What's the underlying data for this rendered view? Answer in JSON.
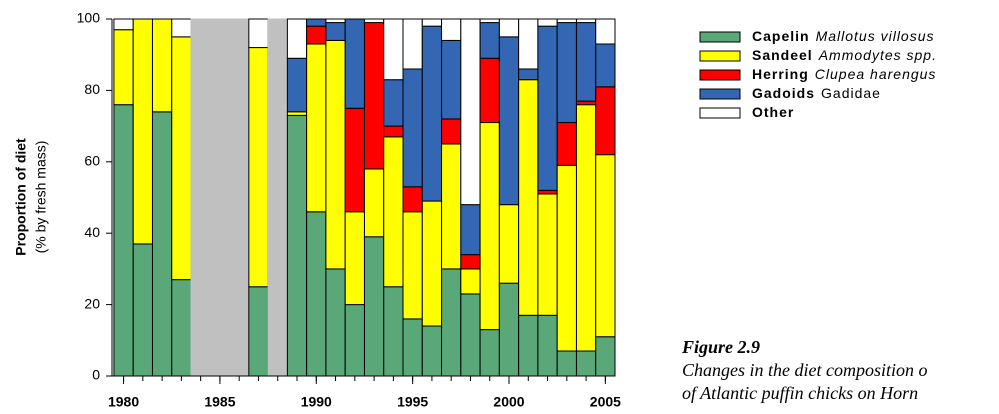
{
  "chart_data": {
    "type": "stacked_bar",
    "y_label": "Proportion of diet",
    "y_label_sub": "(% by fresh mass)",
    "x": [
      1980,
      1981,
      1982,
      1983,
      1984,
      1985,
      1986,
      1987,
      1988,
      1989,
      1990,
      1991,
      1992,
      1993,
      1994,
      1995,
      1996,
      1997,
      1998,
      1999,
      2000,
      2001,
      2002,
      2003,
      2004,
      2005
    ],
    "xlim": [
      1979.4,
      2005.5
    ],
    "xticks": [
      1980,
      1985,
      1990,
      1995,
      2000,
      2005
    ],
    "ylim": [
      0,
      100
    ],
    "yticks": [
      0,
      20,
      40,
      60,
      80,
      100
    ],
    "missing_color": "#c0c0c0",
    "series": [
      {
        "name": "Capelin",
        "scientific_name": "Mallotus villosus",
        "color": "#5aa878",
        "values": [
          76,
          37,
          74,
          27,
          null,
          null,
          null,
          25,
          null,
          73,
          46,
          30,
          20,
          39,
          25,
          16,
          14,
          30,
          23,
          13,
          26,
          17,
          17,
          7,
          7,
          11
        ]
      },
      {
        "name": "Sandeel",
        "scientific_name": "Ammodytes spp.",
        "color": "#ffff00",
        "values": [
          21,
          63,
          26,
          68,
          null,
          null,
          null,
          67,
          null,
          1,
          47,
          64,
          26,
          19,
          42,
          30,
          35,
          35,
          7,
          58,
          22,
          66,
          34,
          52,
          69,
          51
        ]
      },
      {
        "name": "Herring",
        "scientific_name": "Clupea harengus",
        "color": "#ff0000",
        "values": [
          0,
          0,
          0,
          0,
          null,
          null,
          null,
          0,
          null,
          0,
          5,
          0,
          29,
          41,
          3,
          7,
          0,
          7,
          4,
          18,
          0,
          0,
          1,
          12,
          1,
          19
        ]
      },
      {
        "name": "Gadoids",
        "scientific_name": "Gadidae",
        "color": "#3366b3",
        "values": [
          0,
          0,
          0,
          0,
          null,
          null,
          null,
          0,
          null,
          15,
          2,
          5,
          25,
          0,
          13,
          33,
          49,
          22,
          14,
          10,
          47,
          3,
          46,
          28,
          22,
          12
        ]
      },
      {
        "name": "Other",
        "color": "#ffffff",
        "values": [
          3,
          0,
          0,
          5,
          null,
          null,
          null,
          8,
          null,
          11,
          0,
          1,
          0,
          1,
          17,
          14,
          2,
          6,
          52,
          1,
          5,
          14,
          2,
          1,
          1,
          7
        ]
      }
    ]
  },
  "figure": {
    "label": "Figure 2.9",
    "caption": [
      "Changes in the diet composition o",
      "of Atlantic puffin chicks on Horn"
    ]
  }
}
